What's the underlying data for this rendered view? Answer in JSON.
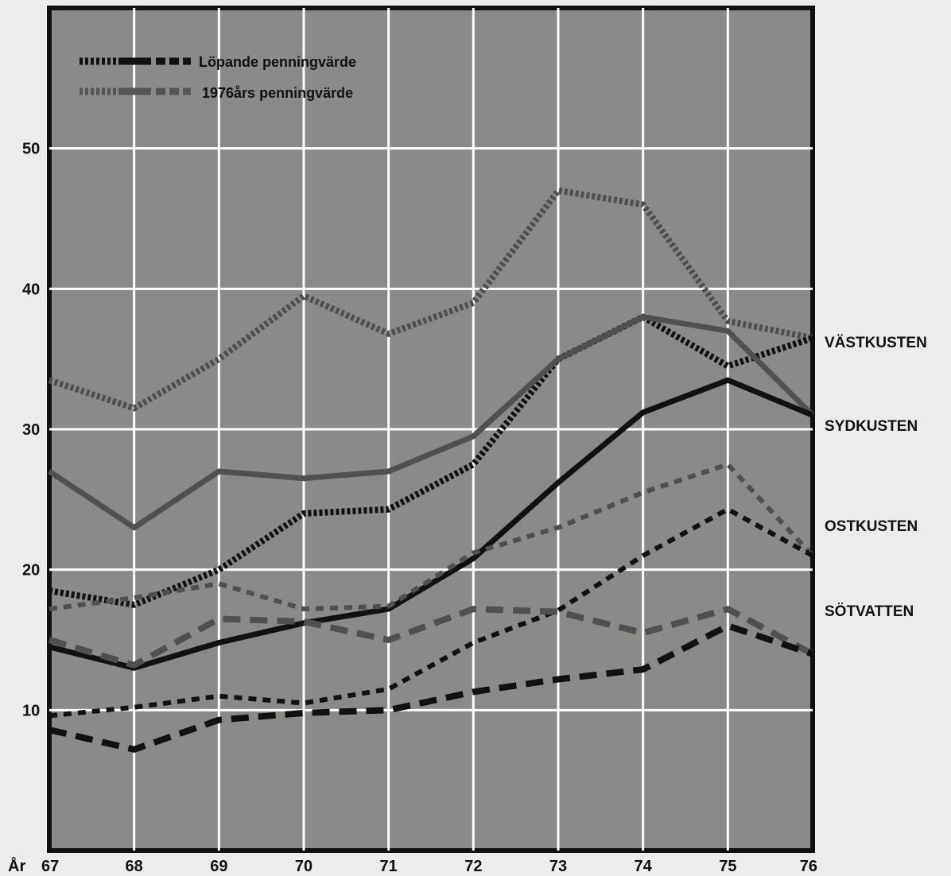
{
  "chart_data": {
    "type": "line",
    "x_axis_label": "År",
    "categories": [
      "67",
      "68",
      "69",
      "70",
      "71",
      "72",
      "73",
      "74",
      "75",
      "76"
    ],
    "ylim": [
      0,
      60
    ],
    "yticks": [
      10,
      20,
      30,
      40,
      50
    ],
    "grid": true,
    "legend": {
      "position": "top-left",
      "entries": [
        "Löpande penningvärde",
        "1976års penningvärde"
      ]
    },
    "region_labels": [
      "VÄSTKUSTEN",
      "SYDKUSTEN",
      "OSTKUSTEN",
      "SÖTVATTEN"
    ],
    "series": [
      {
        "region": "VÄSTKUSTEN",
        "style": "dotted",
        "money": "1976",
        "values": [
          33.5,
          31.5,
          35,
          39.5,
          36.8,
          39,
          47,
          46,
          37.7,
          36.5
        ]
      },
      {
        "region": "VÄSTKUSTEN",
        "style": "dotted",
        "money": "current",
        "values": [
          18.5,
          17.5,
          20,
          24,
          24.3,
          27.5,
          35,
          38,
          34.5,
          36.5
        ]
      },
      {
        "region": "SYDKUSTEN",
        "style": "solid",
        "money": "1976",
        "values": [
          27,
          23,
          27,
          26.5,
          27,
          29.5,
          35,
          38,
          37,
          31
        ]
      },
      {
        "region": "SYDKUSTEN",
        "style": "solid",
        "money": "current",
        "values": [
          14.5,
          13,
          14.8,
          16.2,
          17.2,
          20.8,
          26.2,
          31.2,
          33.5,
          31
        ]
      },
      {
        "region": "OSTKUSTEN",
        "style": "dashed",
        "money": "1976",
        "values": [
          17.2,
          18,
          19,
          17.2,
          17.4,
          21.2,
          23,
          25.5,
          27.5,
          21
        ]
      },
      {
        "region": "OSTKUSTEN",
        "style": "dashed",
        "money": "current",
        "values": [
          9.6,
          10.2,
          11,
          10.5,
          11.5,
          14.8,
          17.1,
          21,
          24.3,
          21
        ]
      },
      {
        "region": "SÖTVATTEN",
        "style": "longdash",
        "money": "1976",
        "values": [
          15,
          13.2,
          16.5,
          16.3,
          15,
          17.2,
          17,
          15.5,
          17.2,
          14
        ]
      },
      {
        "region": "SÖTVATTEN",
        "style": "longdash",
        "money": "current",
        "values": [
          8.6,
          7.2,
          9.3,
          9.8,
          10,
          11.3,
          12.2,
          12.9,
          16,
          14
        ]
      }
    ]
  }
}
